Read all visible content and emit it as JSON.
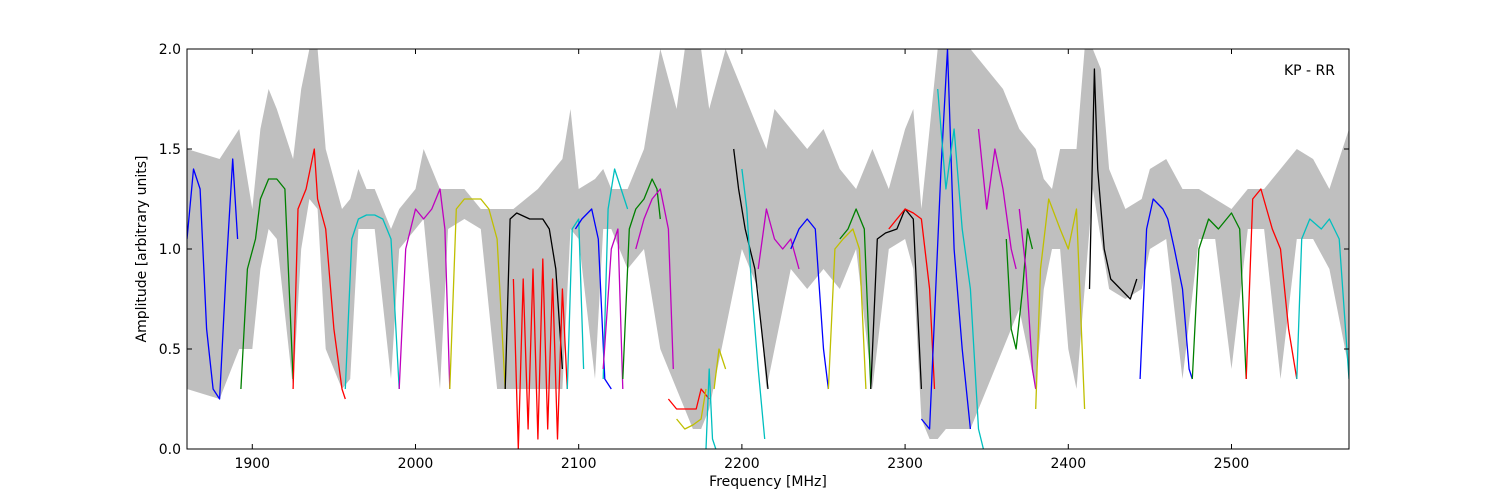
{
  "chart_data": {
    "type": "line",
    "title": "",
    "xlabel": "Frequency [MHz]",
    "ylabel": "Amplitude [arbitrary units]",
    "xlim": [
      1860,
      2572
    ],
    "ylim": [
      0.0,
      2.0
    ],
    "xticks": [
      1900,
      2000,
      2100,
      2200,
      2300,
      2400,
      2500
    ],
    "xtick_labels": [
      "1900",
      "2000",
      "2100",
      "2200",
      "2300",
      "2400",
      "2500"
    ],
    "yticks": [
      0.0,
      0.5,
      1.0,
      1.5,
      2.0
    ],
    "ytick_labels": [
      "0.0",
      "0.5",
      "1.0",
      "1.5",
      "2.0"
    ],
    "grid": false,
    "annotation": "KP - RR",
    "envelope_color": "#bfbfbf",
    "envelope": {
      "x": [
        1860,
        1880,
        1892,
        1900,
        1905,
        1910,
        1915,
        1925,
        1930,
        1935,
        1940,
        1945,
        1955,
        1960,
        1965,
        1970,
        1975,
        1985,
        1990,
        2000,
        2005,
        2015,
        2020,
        2030,
        2040,
        2050,
        2060,
        2075,
        2090,
        2095,
        2100,
        2110,
        2115,
        2120,
        2130,
        2140,
        2150,
        2160,
        2165,
        2170,
        2175,
        2180,
        2190,
        2200,
        2210,
        2215,
        2220,
        2230,
        2240,
        2250,
        2260,
        2270,
        2280,
        2290,
        2300,
        2305,
        2310,
        2315,
        2320,
        2325,
        2330,
        2340,
        2350,
        2360,
        2370,
        2380,
        2385,
        2390,
        2395,
        2400,
        2405,
        2410,
        2415,
        2420,
        2425,
        2435,
        2445,
        2450,
        2460,
        2470,
        2480,
        2490,
        2500,
        2510,
        2520,
        2530,
        2540,
        2550,
        2560,
        2572
      ],
      "high": [
        1.5,
        1.45,
        1.6,
        1.2,
        1.6,
        1.8,
        1.7,
        1.45,
        1.8,
        2.0,
        2.0,
        1.5,
        1.2,
        1.25,
        1.4,
        1.3,
        1.3,
        1.1,
        1.2,
        1.3,
        1.5,
        1.3,
        1.3,
        1.3,
        1.2,
        1.2,
        1.2,
        1.3,
        1.45,
        1.7,
        1.3,
        1.35,
        1.4,
        1.3,
        1.3,
        1.5,
        2.0,
        1.7,
        2.0,
        2.0,
        2.0,
        1.7,
        2.0,
        1.8,
        1.6,
        1.5,
        1.7,
        1.6,
        1.5,
        1.6,
        1.4,
        1.3,
        1.5,
        1.3,
        1.6,
        1.7,
        1.2,
        1.6,
        2.0,
        2.0,
        2.0,
        2.0,
        1.9,
        1.8,
        1.6,
        1.5,
        1.35,
        1.3,
        1.5,
        1.5,
        1.5,
        2.0,
        2.0,
        1.9,
        1.4,
        1.2,
        1.25,
        1.4,
        1.45,
        1.3,
        1.3,
        1.25,
        1.2,
        1.3,
        1.3,
        1.4,
        1.5,
        1.45,
        1.3,
        1.6
      ],
      "low": [
        0.3,
        0.25,
        0.5,
        0.5,
        0.9,
        1.1,
        1.05,
        0.3,
        1.0,
        1.25,
        1.2,
        0.5,
        0.3,
        0.35,
        1.1,
        1.1,
        1.1,
        0.35,
        1.0,
        1.1,
        1.15,
        0.3,
        1.1,
        1.15,
        1.1,
        0.3,
        0.3,
        0.3,
        0.3,
        1.1,
        1.05,
        0.35,
        1.1,
        1.1,
        0.9,
        1.0,
        0.5,
        0.3,
        0.2,
        0.1,
        0.1,
        0.2,
        0.6,
        1.0,
        0.8,
        0.3,
        0.5,
        0.9,
        0.8,
        0.9,
        0.8,
        1.0,
        0.3,
        1.0,
        1.05,
        0.9,
        0.15,
        0.05,
        0.05,
        0.1,
        0.1,
        0.1,
        0.3,
        0.5,
        0.7,
        0.3,
        0.8,
        1.0,
        1.0,
        0.5,
        0.3,
        0.8,
        1.3,
        1.05,
        0.8,
        0.75,
        0.8,
        1.0,
        1.05,
        0.35,
        1.05,
        1.05,
        0.4,
        1.1,
        1.1,
        0.35,
        1.05,
        1.05,
        0.9,
        0.4
      ]
    },
    "series": [
      {
        "color": "#0000ff",
        "x": [
          1860,
          1864,
          1868,
          1872,
          1876,
          1880,
          1884,
          1888,
          1891
        ],
        "y": [
          1.05,
          1.4,
          1.3,
          0.6,
          0.3,
          0.25,
          0.9,
          1.45,
          1.05
        ]
      },
      {
        "color": "#008000",
        "x": [
          1893,
          1897,
          1902,
          1905,
          1910,
          1915,
          1920,
          1925
        ],
        "y": [
          0.3,
          0.9,
          1.05,
          1.25,
          1.35,
          1.35,
          1.3,
          0.35
        ]
      },
      {
        "color": "#ff0000",
        "x": [
          1925,
          1928,
          1933,
          1938,
          1940,
          1945,
          1950,
          1955,
          1957
        ],
        "y": [
          0.3,
          1.2,
          1.3,
          1.5,
          1.25,
          1.1,
          0.6,
          0.3,
          0.25
        ]
      },
      {
        "color": "#00bfbf",
        "x": [
          1957,
          1961,
          1965,
          1970,
          1975,
          1980,
          1985,
          1990
        ],
        "y": [
          0.3,
          1.05,
          1.15,
          1.17,
          1.17,
          1.15,
          1.05,
          0.3
        ]
      },
      {
        "color": "#bf00bf",
        "x": [
          1990,
          1994,
          2000,
          2005,
          2010,
          2015,
          2018,
          2021
        ],
        "y": [
          0.3,
          1.0,
          1.2,
          1.15,
          1.2,
          1.3,
          1.1,
          0.3
        ]
      },
      {
        "color": "#bfbf00",
        "x": [
          2021,
          2025,
          2030,
          2040,
          2045,
          2050,
          2055
        ],
        "y": [
          0.3,
          1.2,
          1.25,
          1.25,
          1.2,
          1.05,
          0.3
        ]
      },
      {
        "color": "#000000",
        "x": [
          2055,
          2058,
          2062,
          2070,
          2078,
          2082,
          2086,
          2090
        ],
        "y": [
          0.3,
          1.15,
          1.18,
          1.15,
          1.15,
          1.1,
          0.9,
          0.4
        ]
      },
      {
        "color": "#ff0000",
        "x": [
          2060,
          2063,
          2066,
          2069,
          2072,
          2075,
          2078,
          2081,
          2084,
          2087,
          2090,
          2093
        ],
        "y": [
          0.85,
          0.0,
          0.85,
          0.1,
          0.9,
          0.05,
          0.95,
          0.1,
          0.85,
          0.05,
          0.8,
          0.3
        ]
      },
      {
        "color": "#00bfbf",
        "x": [
          2093,
          2096,
          2100,
          2103
        ],
        "y": [
          0.3,
          1.1,
          1.15,
          0.4
        ]
      },
      {
        "color": "#0000ff",
        "x": [
          2098,
          2102,
          2108,
          2112,
          2116,
          2120
        ],
        "y": [
          1.1,
          1.15,
          1.2,
          1.05,
          0.35,
          0.3
        ]
      },
      {
        "color": "#00bfbf",
        "x": [
          2115,
          2118,
          2122,
          2126,
          2130
        ],
        "y": [
          0.35,
          1.2,
          1.4,
          1.3,
          1.2
        ]
      },
      {
        "color": "#bf00bf",
        "x": [
          2115,
          2120,
          2124,
          2127
        ],
        "y": [
          0.4,
          1.0,
          1.1,
          0.3
        ]
      },
      {
        "color": "#008000",
        "x": [
          2127,
          2131,
          2135,
          2140,
          2145,
          2148,
          2150
        ],
        "y": [
          0.35,
          1.1,
          1.2,
          1.25,
          1.35,
          1.3,
          1.15
        ]
      },
      {
        "color": "#bf00bf",
        "x": [
          2135,
          2140,
          2145,
          2150,
          2155,
          2158
        ],
        "y": [
          1.0,
          1.15,
          1.25,
          1.3,
          1.1,
          0.4
        ]
      },
      {
        "color": "#ff0000",
        "x": [
          2155,
          2160,
          2165,
          2172,
          2175,
          2180
        ],
        "y": [
          0.25,
          0.2,
          0.2,
          0.2,
          0.3,
          0.25
        ]
      },
      {
        "color": "#bfbf00",
        "x": [
          2160,
          2165,
          2170,
          2175,
          2178
        ],
        "y": [
          0.15,
          0.1,
          0.12,
          0.15,
          0.3
        ]
      },
      {
        "color": "#00bfbf",
        "x": [
          2178,
          2180,
          2182,
          2184
        ],
        "y": [
          0.0,
          0.4,
          0.05,
          0.0
        ]
      },
      {
        "color": "#bfbf00",
        "x": [
          2183,
          2186,
          2190
        ],
        "y": [
          0.3,
          0.5,
          0.4
        ]
      },
      {
        "color": "#000000",
        "x": [
          2195,
          2198,
          2202,
          2205,
          2208,
          2212,
          2216
        ],
        "y": [
          1.5,
          1.3,
          1.1,
          1.0,
          0.9,
          0.6,
          0.3
        ]
      },
      {
        "color": "#00bfbf",
        "x": [
          2200,
          2203,
          2206,
          2210,
          2214
        ],
        "y": [
          1.4,
          1.2,
          0.8,
          0.4,
          0.05
        ]
      },
      {
        "color": "#bf00bf",
        "x": [
          2210,
          2215,
          2220,
          2225,
          2230,
          2235
        ],
        "y": [
          0.9,
          1.2,
          1.05,
          1.0,
          1.05,
          0.9
        ]
      },
      {
        "color": "#0000ff",
        "x": [
          2230,
          2235,
          2240,
          2245,
          2250,
          2253
        ],
        "y": [
          1.0,
          1.1,
          1.15,
          1.1,
          0.5,
          0.3
        ]
      },
      {
        "color": "#bfbf00",
        "x": [
          2253,
          2257,
          2262,
          2268,
          2272,
          2276
        ],
        "y": [
          0.3,
          1.0,
          1.05,
          1.1,
          1.0,
          0.3
        ]
      },
      {
        "color": "#008000",
        "x": [
          2260,
          2265,
          2270,
          2275,
          2279
        ],
        "y": [
          1.05,
          1.1,
          1.2,
          1.1,
          0.3
        ]
      },
      {
        "color": "#000000",
        "x": [
          2279,
          2283,
          2288,
          2295,
          2300,
          2305,
          2310
        ],
        "y": [
          0.3,
          1.05,
          1.08,
          1.1,
          1.2,
          1.15,
          0.3
        ]
      },
      {
        "color": "#ff0000",
        "x": [
          2290,
          2295,
          2300,
          2305,
          2310,
          2315,
          2318
        ],
        "y": [
          1.1,
          1.15,
          1.2,
          1.18,
          1.15,
          0.8,
          0.3
        ]
      },
      {
        "color": "#0000ff",
        "x": [
          2310,
          2315,
          2322,
          2326,
          2330,
          2335,
          2340
        ],
        "y": [
          0.15,
          0.1,
          1.4,
          2.0,
          1.0,
          0.5,
          0.1
        ]
      },
      {
        "color": "#00bfbf",
        "x": [
          2320,
          2325,
          2330,
          2335,
          2340,
          2345,
          2348
        ],
        "y": [
          1.8,
          1.3,
          1.6,
          1.1,
          0.8,
          0.1,
          0.0
        ]
      },
      {
        "color": "#bf00bf",
        "x": [
          2345,
          2350,
          2355,
          2360,
          2365,
          2368
        ],
        "y": [
          1.6,
          1.2,
          1.5,
          1.3,
          1.0,
          0.9
        ]
      },
      {
        "color": "#008000",
        "x": [
          2362,
          2365,
          2368,
          2372,
          2375,
          2378
        ],
        "y": [
          1.05,
          0.6,
          0.5,
          0.8,
          1.1,
          1.0
        ]
      },
      {
        "color": "#bf00bf",
        "x": [
          2370,
          2374,
          2378,
          2380
        ],
        "y": [
          1.2,
          0.9,
          0.4,
          0.3
        ]
      },
      {
        "color": "#bfbf00",
        "x": [
          2380,
          2383,
          2388,
          2395,
          2400,
          2405,
          2410
        ],
        "y": [
          0.2,
          0.9,
          1.25,
          1.1,
          1.0,
          1.2,
          0.2
        ]
      },
      {
        "color": "#000000",
        "x": [
          2413,
          2416,
          2418,
          2422,
          2426,
          2432,
          2438,
          2442
        ],
        "y": [
          0.8,
          1.9,
          1.4,
          1.0,
          0.85,
          0.8,
          0.75,
          0.85
        ]
      },
      {
        "color": "#0000ff",
        "x": [
          2444,
          2448,
          2452,
          2458,
          2461,
          2465,
          2470,
          2474,
          2476
        ],
        "y": [
          0.35,
          1.1,
          1.25,
          1.2,
          1.15,
          1.0,
          0.8,
          0.4,
          0.35
        ]
      },
      {
        "color": "#008000",
        "x": [
          2476,
          2480,
          2486,
          2492,
          2500,
          2505,
          2509
        ],
        "y": [
          0.35,
          1.0,
          1.15,
          1.1,
          1.18,
          1.1,
          0.35
        ]
      },
      {
        "color": "#ff0000",
        "x": [
          2509,
          2513,
          2518,
          2525,
          2530,
          2535,
          2540
        ],
        "y": [
          0.35,
          1.25,
          1.3,
          1.1,
          1.0,
          0.6,
          0.35
        ]
      },
      {
        "color": "#00bfbf",
        "x": [
          2540,
          2543,
          2548,
          2555,
          2560,
          2566,
          2572
        ],
        "y": [
          0.35,
          1.05,
          1.15,
          1.1,
          1.15,
          1.05,
          0.35
        ]
      }
    ]
  }
}
